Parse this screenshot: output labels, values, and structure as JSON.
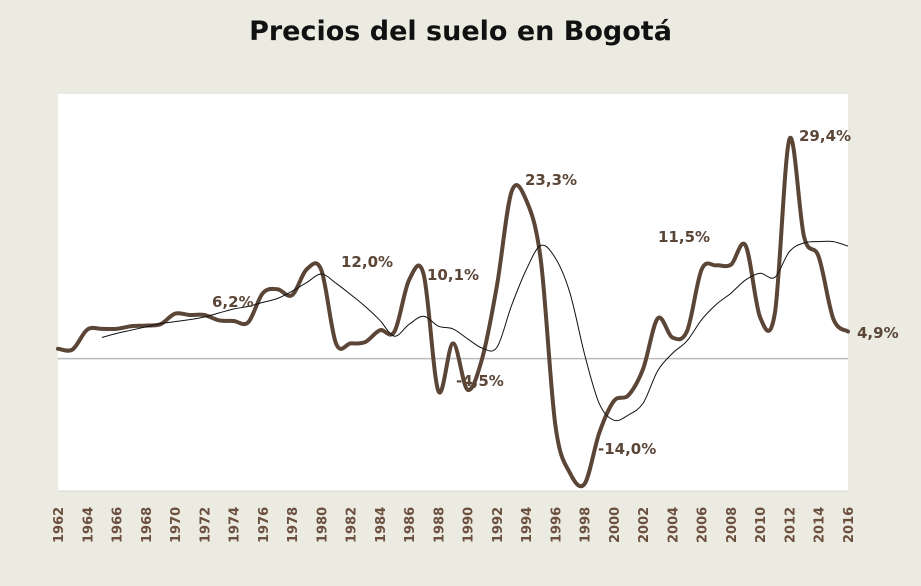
{
  "chart_data": {
    "type": "line",
    "title": "Precios del suelo en Bogotá",
    "x": [
      1962,
      1963,
      1964,
      1965,
      1966,
      1967,
      1968,
      1969,
      1970,
      1971,
      1972,
      1973,
      1974,
      1975,
      1976,
      1977,
      1978,
      1979,
      1980,
      1981,
      1982,
      1983,
      1984,
      1985,
      1986,
      1987,
      1988,
      1989,
      1990,
      1991,
      1992,
      1993,
      1994,
      1995,
      1996,
      1997,
      1998,
      1999,
      2000,
      2001,
      2002,
      2003,
      2004,
      2005,
      2006,
      2007,
      2008,
      2009,
      2010,
      2011,
      2012,
      2013,
      2014,
      2015,
      2016
    ],
    "xlim": [
      1962,
      2016
    ],
    "ylim": [
      -20,
      40
    ],
    "series": [
      {
        "color": "#5a4536",
        "values": [
          1.5,
          1.4,
          4.4,
          4.5,
          4.5,
          4.9,
          5.0,
          5.2,
          6.8,
          6.6,
          6.6,
          5.8,
          5.7,
          5.5,
          9.9,
          10.5,
          9.6,
          13.5,
          13.4,
          2.3,
          2.3,
          2.5,
          4.3,
          4.1,
          11.9,
          12.7,
          -4.9,
          2.3,
          -4.7,
          0.1,
          11.0,
          25.2,
          24.0,
          14.9,
          -10.1,
          -17.3,
          -18.9,
          -11.2,
          -6.4,
          -5.5,
          -1.5,
          6.1,
          3.2,
          4.2,
          13.5,
          14.1,
          14.2,
          17.1,
          6.2,
          6.9,
          33.2,
          18.4,
          15.4,
          6.0,
          4.1
        ]
      },
      {
        "color": "#111111",
        "values": [
          null,
          null,
          null,
          3.2,
          3.8,
          4.3,
          4.8,
          5.3,
          5.6,
          5.9,
          6.3,
          6.9,
          7.5,
          7.9,
          8.5,
          9.1,
          10.2,
          11.5,
          12.8,
          11.4,
          9.7,
          7.9,
          5.8,
          3.4,
          5.2,
          6.4,
          4.9,
          4.5,
          3.0,
          1.6,
          1.7,
          8.0,
          13.4,
          17.1,
          15.2,
          9.9,
          0.6,
          -6.8,
          -9.3,
          -8.5,
          -6.7,
          -1.8,
          0.8,
          2.7,
          5.9,
          8.2,
          9.9,
          11.9,
          12.9,
          12.3,
          16.2,
          17.5,
          17.7,
          17.7,
          17.0
        ]
      }
    ],
    "annotations": [
      "6,2%",
      "12,0%",
      "10,1%",
      "-4,5%",
      "23,3%",
      "-14,0%",
      "11,5%",
      "29,4%",
      "4,9%"
    ]
  }
}
